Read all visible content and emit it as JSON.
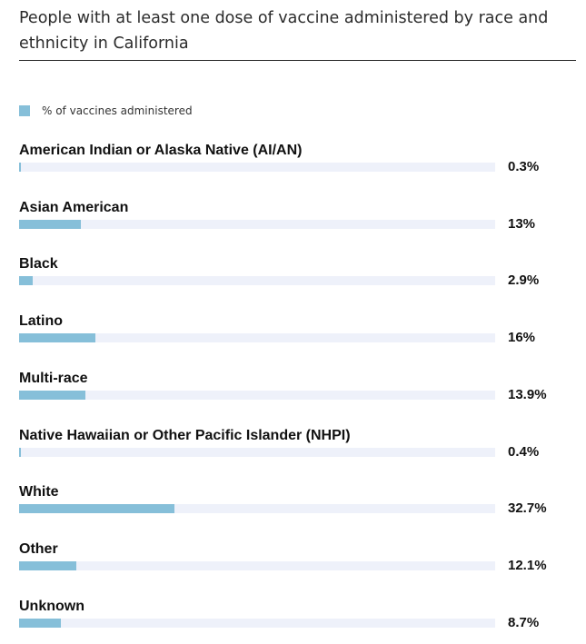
{
  "chart_data": {
    "type": "bar",
    "orientation": "horizontal",
    "title": "People with at least one dose of vaccine administered by race and ethnicity in California",
    "legend": [
      "% of vaccines administered"
    ],
    "legend_position": "top-left",
    "bar_color": "#86bfd9",
    "track_color": "#eef1fa",
    "xlim": [
      0,
      100
    ],
    "categories": [
      "American Indian or Alaska Native (AI/AN)",
      "Asian American",
      "Black",
      "Latino",
      "Multi-race",
      "Native Hawaiian or Other Pacific Islander (NHPI)",
      "White",
      "Other",
      "Unknown"
    ],
    "series": [
      {
        "name": "% of vaccines administered",
        "values": [
          0.3,
          13,
          2.9,
          16,
          13.9,
          0.4,
          32.7,
          12.1,
          8.7
        ],
        "labels": [
          "0.3%",
          "13%",
          "2.9%",
          "16%",
          "13.9%",
          "0.4%",
          "32.7%",
          "12.1%",
          "8.7%"
        ]
      }
    ]
  }
}
